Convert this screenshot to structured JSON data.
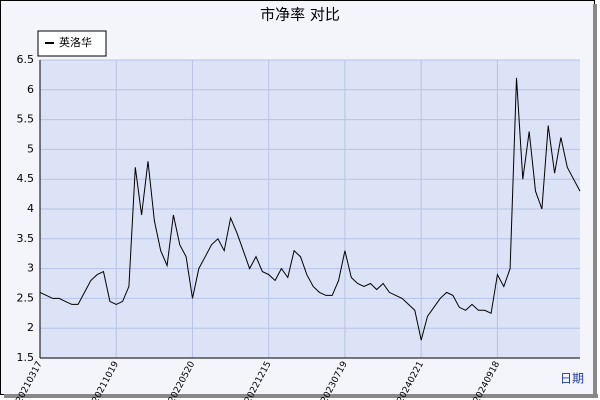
{
  "chart_data": {
    "type": "line",
    "title": "市净率 对比",
    "x_label": "日期",
    "categories": [
      "20210317",
      null,
      null,
      null,
      null,
      null,
      null,
      null,
      null,
      null,
      null,
      null,
      "20211019",
      null,
      null,
      null,
      null,
      null,
      null,
      null,
      null,
      null,
      null,
      null,
      "20220520",
      null,
      null,
      null,
      null,
      null,
      null,
      null,
      null,
      null,
      null,
      null,
      "20221215",
      null,
      null,
      null,
      null,
      null,
      null,
      null,
      null,
      null,
      null,
      null,
      "20230719",
      null,
      null,
      null,
      null,
      null,
      null,
      null,
      null,
      null,
      null,
      null,
      "20240221",
      null,
      null,
      null,
      null,
      null,
      null,
      null,
      null,
      null,
      null,
      null,
      "20240918",
      null,
      null,
      null,
      null,
      null,
      null,
      null,
      null,
      null,
      null,
      null,
      null,
      null
    ],
    "series": [
      {
        "name": "英洛华",
        "color": "#000000",
        "values": [
          2.6,
          2.55,
          2.5,
          2.5,
          2.45,
          2.4,
          2.4,
          2.6,
          2.8,
          2.9,
          2.95,
          2.45,
          2.4,
          2.45,
          2.7,
          4.7,
          3.9,
          4.8,
          3.8,
          3.3,
          3.05,
          3.9,
          3.4,
          3.2,
          2.5,
          3.0,
          3.2,
          3.4,
          3.5,
          3.3,
          3.85,
          3.6,
          3.3,
          3.0,
          3.2,
          2.95,
          2.9,
          2.8,
          3.0,
          2.85,
          3.3,
          3.2,
          2.9,
          2.7,
          2.6,
          2.55,
          2.55,
          2.8,
          3.3,
          2.85,
          2.75,
          2.7,
          2.75,
          2.65,
          2.75,
          2.6,
          2.55,
          2.5,
          2.4,
          2.3,
          1.8,
          2.2,
          2.35,
          2.5,
          2.6,
          2.55,
          2.35,
          2.3,
          2.4,
          2.3,
          2.3,
          2.25,
          2.9,
          2.7,
          3.0,
          6.2,
          4.5,
          5.3,
          4.3,
          4.0,
          5.4,
          4.6,
          5.2,
          4.7,
          4.5,
          4.3
        ]
      }
    ],
    "ylim": [
      1.5,
      6.5
    ],
    "yticks": [
      1.5,
      2.0,
      2.5,
      3.0,
      3.5,
      4.0,
      4.5,
      5.0,
      5.5,
      6.0,
      6.5
    ],
    "grid": true,
    "legend": "top-left"
  }
}
